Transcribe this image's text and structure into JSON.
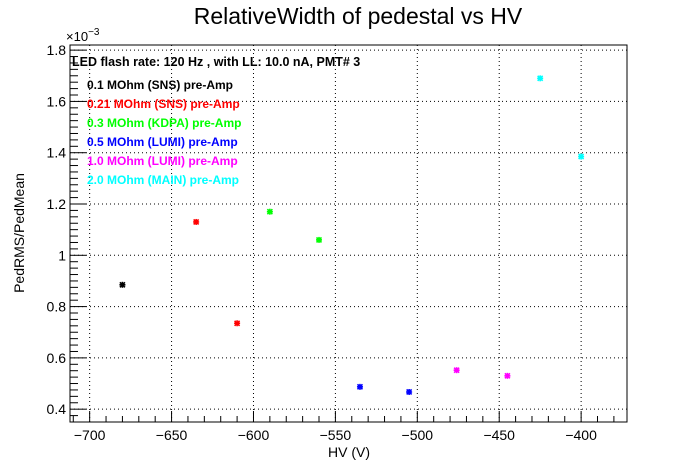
{
  "chart_data": {
    "type": "scatter",
    "title": "RelativeWidth of pedestal vs HV",
    "xlabel": "HV (V)",
    "ylabel": "PedRMS/PedMean",
    "y_multiplier": "×10",
    "y_exponent": "−3",
    "xlim": [
      -712,
      -372
    ],
    "ylim": [
      0.35,
      1.82
    ],
    "x_ticks": [
      -700,
      -650,
      -600,
      -550,
      -500,
      -450,
      -400
    ],
    "x_tick_labels": [
      "−700",
      "−650",
      "−600",
      "−550",
      "−500",
      "−450",
      "−400"
    ],
    "y_ticks": [
      0.4,
      0.6,
      0.8,
      1.0,
      1.2,
      1.4,
      1.6,
      1.8
    ],
    "y_tick_labels": [
      "0.4",
      "0.6",
      "0.8",
      "1",
      "1.2",
      "1.4",
      "1.6",
      "1.8"
    ],
    "grid": true,
    "legend_header": "LED flash rate: 120 Hz , with LL: 10.0 nA, PMT# 3",
    "legend_position": "top-left",
    "series": [
      {
        "name": "0.1 MOhm (SNS) pre-Amp",
        "color": "#000000",
        "points": [
          [
            -680,
            0.885
          ]
        ]
      },
      {
        "name": "0.21 MOhm (SNS) pre-Amp",
        "color": "#ff0000",
        "points": [
          [
            -635,
            1.13
          ],
          [
            -610,
            0.735
          ]
        ]
      },
      {
        "name": "0.3 MOhm (KDPA) pre-Amp",
        "color": "#00ff00",
        "points": [
          [
            -590,
            1.17
          ],
          [
            -560,
            1.06
          ]
        ]
      },
      {
        "name": "0.5 MOhm (LUMI) pre-Amp",
        "color": "#0000ff",
        "points": [
          [
            -535,
            0.487
          ],
          [
            -505,
            0.467
          ]
        ]
      },
      {
        "name": "1.0 MOhm (LUMI) pre-Amp",
        "color": "#ff00ff",
        "points": [
          [
            -476,
            0.552
          ],
          [
            -445,
            0.53
          ]
        ]
      },
      {
        "name": "2.0 MOhm (MAIN) pre-Amp",
        "color": "#00ffff",
        "points": [
          [
            -425,
            1.69
          ],
          [
            -400,
            1.385
          ]
        ]
      }
    ]
  }
}
